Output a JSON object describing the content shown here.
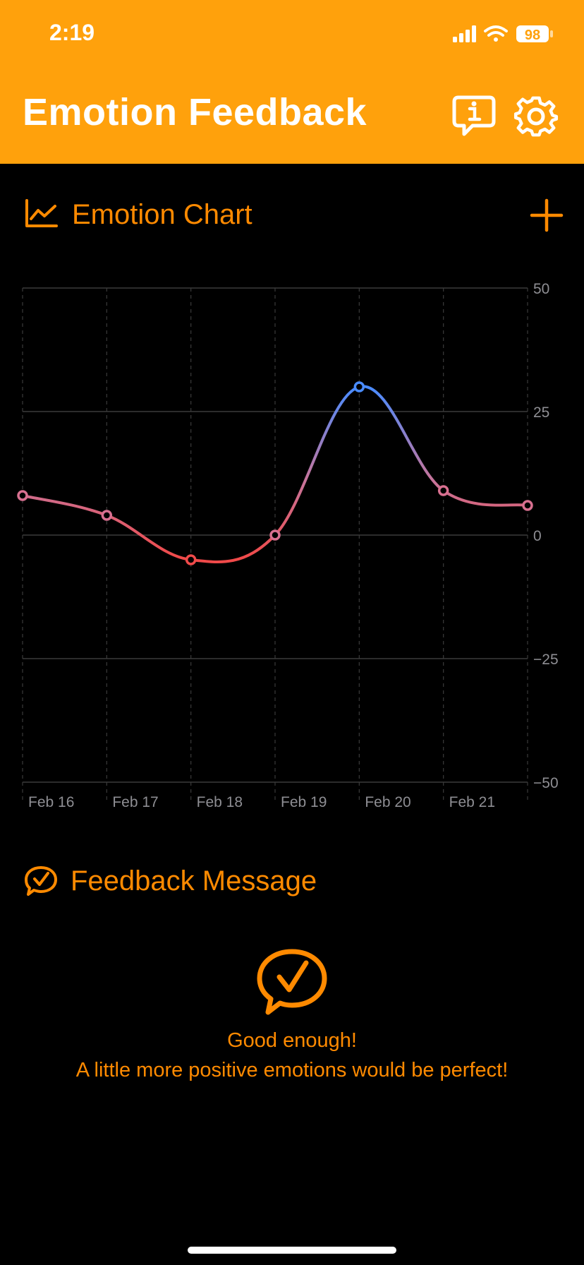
{
  "status_bar": {
    "time": "2:19",
    "battery": "98"
  },
  "header": {
    "title": "Emotion Feedback",
    "info_icon": "info-bubble-icon",
    "settings_icon": "gear-icon"
  },
  "chart_section": {
    "title": "Emotion Chart",
    "icon": "line-chart-icon",
    "add_icon": "plus-icon"
  },
  "chart_data": {
    "type": "line",
    "categories": [
      "Feb 16",
      "Feb 17",
      "Feb 18",
      "Feb 19",
      "Feb 20",
      "Feb 21",
      ""
    ],
    "series": [
      {
        "values": [
          8,
          4,
          -5,
          0,
          30,
          9,
          6
        ]
      }
    ],
    "ylim": [
      -50,
      50
    ],
    "yticks": [
      50,
      25,
      0,
      -25,
      -50
    ],
    "ytick_labels": [
      "50",
      "25",
      "0",
      "−25",
      "−50"
    ],
    "grid": true,
    "colors": {
      "positive": "#4A8CFF",
      "negative": "#F04A4A",
      "neutral": "#D87090"
    }
  },
  "feedback_section": {
    "title": "Feedback Message",
    "icon": "check-bubble-icon",
    "message_line1": "Good enough!",
    "message_line2": "A little more positive emotions would be perfect!"
  },
  "colors": {
    "header_bg": "#FFA10C",
    "accent": "#FF8A00",
    "background": "#000000"
  }
}
